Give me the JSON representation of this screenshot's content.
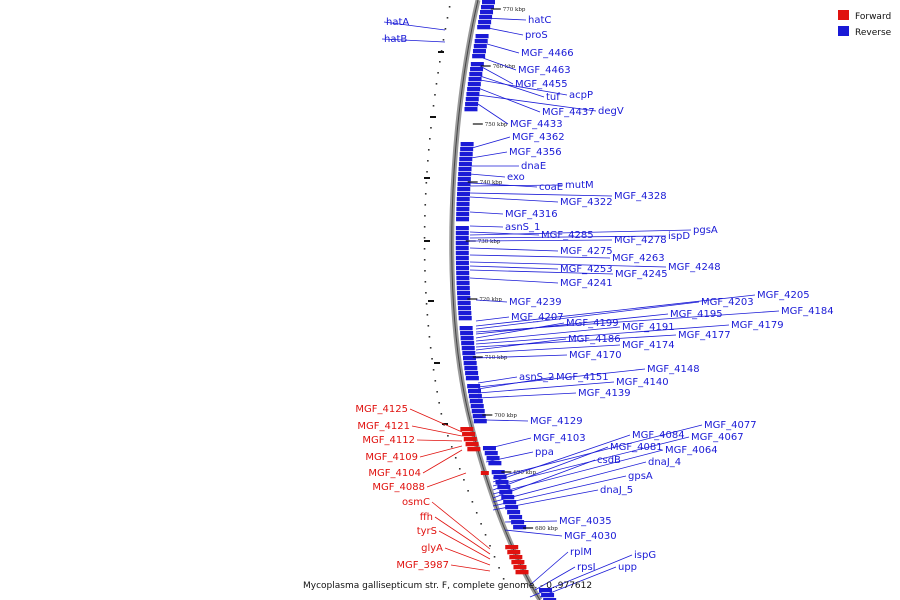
{
  "caption": "Mycoplasma gallisepticum str. F, complete genome. - 0..977612",
  "legend": [
    {
      "label": "Forward",
      "color": "#e0120f"
    },
    {
      "label": "Reverse",
      "color": "#1a1ad6"
    }
  ],
  "strand_colors": {
    "forward": "#e0120f",
    "reverse": "#1a1ad6"
  },
  "ticks": [
    "770 kbp",
    "760 kbp",
    "750 kbp",
    "740 kbp",
    "730 kbp",
    "720 kbp",
    "710 kbp",
    "700 kbp",
    "690 kbp",
    "680 kbp"
  ],
  "genes": [
    {
      "name": "hatA",
      "strand": "reverse"
    },
    {
      "name": "hatB",
      "strand": "reverse"
    },
    {
      "name": "hatC",
      "strand": "reverse"
    },
    {
      "name": "proS",
      "strand": "reverse"
    },
    {
      "name": "MGF_4466",
      "strand": "reverse"
    },
    {
      "name": "MGF_4463",
      "strand": "reverse"
    },
    {
      "name": "MGF_4455",
      "strand": "reverse"
    },
    {
      "name": "tuf",
      "strand": "reverse"
    },
    {
      "name": "acpP",
      "strand": "reverse"
    },
    {
      "name": "MGF_4437",
      "strand": "reverse"
    },
    {
      "name": "degV",
      "strand": "reverse"
    },
    {
      "name": "MGF_4433",
      "strand": "reverse"
    },
    {
      "name": "MGF_4362",
      "strand": "reverse"
    },
    {
      "name": "MGF_4356",
      "strand": "reverse"
    },
    {
      "name": "dnaE",
      "strand": "reverse"
    },
    {
      "name": "exo",
      "strand": "reverse"
    },
    {
      "name": "coaE",
      "strand": "reverse"
    },
    {
      "name": "mutM",
      "strand": "reverse"
    },
    {
      "name": "MGF_4328",
      "strand": "reverse"
    },
    {
      "name": "MGF_4322",
      "strand": "reverse"
    },
    {
      "name": "MGF_4316",
      "strand": "reverse"
    },
    {
      "name": "asnS_1",
      "strand": "reverse"
    },
    {
      "name": "MGF_4285",
      "strand": "reverse"
    },
    {
      "name": "pgsA",
      "strand": "reverse"
    },
    {
      "name": "ispD",
      "strand": "reverse"
    },
    {
      "name": "MGF_4278",
      "strand": "reverse"
    },
    {
      "name": "MGF_4275",
      "strand": "reverse"
    },
    {
      "name": "MGF_4263",
      "strand": "reverse"
    },
    {
      "name": "MGF_4248",
      "strand": "reverse"
    },
    {
      "name": "MGF_4253",
      "strand": "reverse"
    },
    {
      "name": "MGF_4245",
      "strand": "reverse"
    },
    {
      "name": "MGF_4241",
      "strand": "reverse"
    },
    {
      "name": "MGF_4239",
      "strand": "reverse"
    },
    {
      "name": "MGF_4205",
      "strand": "reverse"
    },
    {
      "name": "MGF_4203",
      "strand": "reverse"
    },
    {
      "name": "MGF_4184",
      "strand": "reverse"
    },
    {
      "name": "MGF_4195",
      "strand": "reverse"
    },
    {
      "name": "MGF_4207",
      "strand": "reverse"
    },
    {
      "name": "MGF_4199",
      "strand": "reverse"
    },
    {
      "name": "MGF_4191",
      "strand": "reverse"
    },
    {
      "name": "MGF_4179",
      "strand": "reverse"
    },
    {
      "name": "MGF_4177",
      "strand": "reverse"
    },
    {
      "name": "MGF_4186",
      "strand": "reverse"
    },
    {
      "name": "MGF_4174",
      "strand": "reverse"
    },
    {
      "name": "MGF_4170",
      "strand": "reverse"
    },
    {
      "name": "MGF_4148",
      "strand": "reverse"
    },
    {
      "name": "asnS_2",
      "strand": "reverse"
    },
    {
      "name": "MGF_4151",
      "strand": "reverse"
    },
    {
      "name": "MGF_4140",
      "strand": "reverse"
    },
    {
      "name": "MGF_4139",
      "strand": "reverse"
    },
    {
      "name": "MGF_4129",
      "strand": "reverse"
    },
    {
      "name": "MGF_4077",
      "strand": "reverse"
    },
    {
      "name": "MGF_4084",
      "strand": "reverse"
    },
    {
      "name": "MGF_4067",
      "strand": "reverse"
    },
    {
      "name": "MGF_4103",
      "strand": "reverse"
    },
    {
      "name": "MGF_4081",
      "strand": "reverse"
    },
    {
      "name": "MGF_4064",
      "strand": "reverse"
    },
    {
      "name": "ppa",
      "strand": "reverse"
    },
    {
      "name": "csdB",
      "strand": "reverse"
    },
    {
      "name": "dnaJ_4",
      "strand": "reverse"
    },
    {
      "name": "gpsA",
      "strand": "reverse"
    },
    {
      "name": "dnaJ_5",
      "strand": "reverse"
    },
    {
      "name": "MGF_4035",
      "strand": "reverse"
    },
    {
      "name": "MGF_4030",
      "strand": "reverse"
    },
    {
      "name": "rplM",
      "strand": "reverse"
    },
    {
      "name": "ispG",
      "strand": "reverse"
    },
    {
      "name": "rpsI",
      "strand": "reverse"
    },
    {
      "name": "upp",
      "strand": "reverse"
    },
    {
      "name": "MGF_4125",
      "strand": "forward"
    },
    {
      "name": "MGF_4121",
      "strand": "forward"
    },
    {
      "name": "MGF_4112",
      "strand": "forward"
    },
    {
      "name": "MGF_4109",
      "strand": "forward"
    },
    {
      "name": "MGF_4104",
      "strand": "forward"
    },
    {
      "name": "MGF_4088",
      "strand": "forward"
    },
    {
      "name": "osmC",
      "strand": "forward"
    },
    {
      "name": "ffh",
      "strand": "forward"
    },
    {
      "name": "tyrS",
      "strand": "forward"
    },
    {
      "name": "glyA",
      "strand": "forward"
    },
    {
      "name": "MGF_3987",
      "strand": "forward"
    }
  ]
}
